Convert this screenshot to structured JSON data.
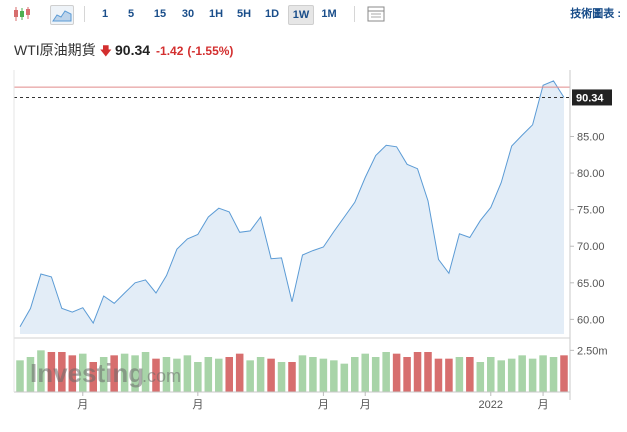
{
  "toolbar": {
    "intervals": [
      "1",
      "5",
      "15",
      "30",
      "1H",
      "5H",
      "1D",
      "1W",
      "1M"
    ],
    "active_interval": "1W",
    "right_label": "技術圖表 :"
  },
  "quote": {
    "name": "WTI原油期貨",
    "price": "90.34",
    "change": "-1.42",
    "change_pct": "(-1.55%)",
    "down_color": "#d32f2f"
  },
  "watermark": {
    "main": "Investing",
    "sub": ".com"
  },
  "chart_data": {
    "type": "line",
    "price_series": {
      "values": [
        59.0,
        61.5,
        66.2,
        65.8,
        61.5,
        61.0,
        61.6,
        59.5,
        63.2,
        62.2,
        63.6,
        65.0,
        65.4,
        63.6,
        66.0,
        69.6,
        71.0,
        71.6,
        74.0,
        75.2,
        74.7,
        71.9,
        72.1,
        74.0,
        68.3,
        68.4,
        62.4,
        68.8,
        69.4,
        69.9,
        72.0,
        74.0,
        76.0,
        79.4,
        82.4,
        83.8,
        83.6,
        81.2,
        80.6,
        76.2,
        68.2,
        66.3,
        71.7,
        71.2,
        73.5,
        75.3,
        78.7,
        83.7,
        85.2,
        86.6,
        92.0,
        92.6,
        90.34
      ],
      "area_fill": "#e3edf7",
      "line_color": "#5b9bd5"
    },
    "volume_series": {
      "values": [
        1.9,
        2.1,
        2.5,
        2.4,
        2.4,
        2.2,
        2.3,
        1.8,
        2.1,
        2.2,
        2.3,
        2.2,
        2.4,
        2.0,
        2.1,
        2.0,
        2.2,
        1.8,
        2.1,
        2.0,
        2.1,
        2.3,
        1.9,
        2.1,
        2.0,
        1.8,
        1.8,
        2.2,
        2.1,
        2.0,
        1.9,
        1.7,
        2.1,
        2.3,
        2.1,
        2.4,
        2.3,
        2.1,
        2.4,
        2.4,
        2.0,
        2.0,
        2.1,
        2.1,
        1.8,
        2.1,
        1.9,
        2.0,
        2.2,
        2.0,
        2.2,
        2.1,
        2.2
      ],
      "up_color": "#a8d4a8",
      "down_color": "#d76e6e"
    },
    "yticks": [
      "60.00",
      "65.00",
      "70.00",
      "75.00",
      "80.00",
      "85.00"
    ],
    "ylim": [
      58.0,
      93.0
    ],
    "volume_label": "2.50m",
    "volume_max": 3.0,
    "xticks": [
      {
        "label": "月",
        "index": 6
      },
      {
        "label": "月",
        "index": 17
      },
      {
        "label": "月",
        "index": 29
      },
      {
        "label": "月",
        "index": 33
      },
      {
        "label": "2022",
        "index": 45
      },
      {
        "label": "月",
        "index": 50
      }
    ],
    "current_price": 90.34,
    "current_price_label": "90.34",
    "reference_line": 91.76,
    "reference_color": "#e08a8a",
    "grid": false
  }
}
